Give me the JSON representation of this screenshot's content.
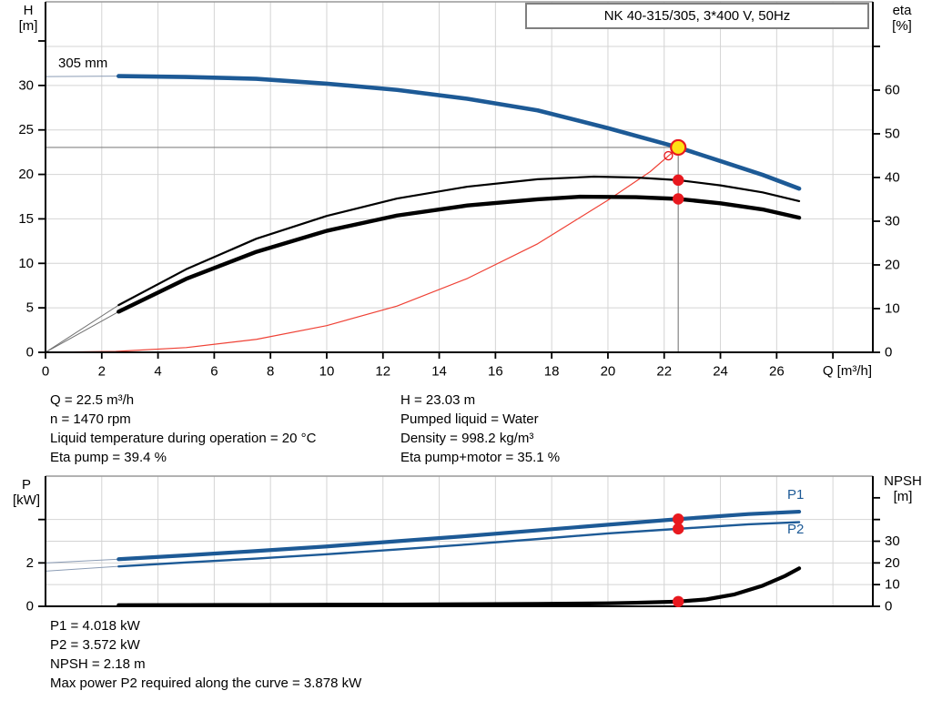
{
  "labels": {
    "impeller": "305 mm",
    "p1": "P1",
    "p2": "P2"
  },
  "info_top": {
    "left": [
      "Q = 22.5 m³/h",
      "n = 1470 rpm",
      "Liquid temperature during operation = 20 °C",
      "Eta pump = 39.4 %"
    ],
    "right": [
      "H = 23.03 m",
      "Pumped liquid = Water",
      "Density = 998.2 kg/m³",
      "Eta pump+motor = 35.1 %"
    ]
  },
  "info_bottom": [
    "P1 = 4.018 kW",
    "P2 = 3.572 kW",
    "NPSH = 2.18 m",
    "Max power P2 required along the curve = 3.878 kW"
  ],
  "colors": {
    "curve_blue": "#1d5a96",
    "curve_black": "#000000",
    "sys_red": "#ef4135",
    "marker_red": "#e8191f",
    "duty_yellow": "#ffe014",
    "ref_gray": "#848484",
    "grid": "#d4d4d4",
    "axis": "#000000",
    "border_gray": "#999999",
    "lead_gray": "#6f6f6f",
    "lead_blue": "#8b9cb5"
  },
  "chart_data": [
    {
      "type": "line",
      "name": "qh-eta-chart",
      "title": "NK 40-315/305, 3*400 V, 50Hz",
      "impeller_label": "305 mm",
      "x_axis": {
        "label": "Q [m³/h]",
        "min": 0,
        "max": 29.42,
        "ticks": [
          [
            0,
            "0"
          ],
          [
            2,
            "2"
          ],
          [
            4,
            "4"
          ],
          [
            6,
            "6"
          ],
          [
            8,
            "8"
          ],
          [
            10,
            "10"
          ],
          [
            12,
            "12"
          ],
          [
            14,
            "14"
          ],
          [
            16,
            "16"
          ],
          [
            18,
            "18"
          ],
          [
            20,
            "20"
          ],
          [
            22,
            "22"
          ],
          [
            24,
            "24"
          ],
          [
            26,
            "26"
          ],
          [
            28,
            ""
          ]
        ],
        "grid": [
          2,
          4,
          6,
          8,
          10,
          12,
          14,
          16,
          18,
          20,
          22,
          24,
          26,
          28
        ]
      },
      "y_left": {
        "label": "H",
        "unit": "[m]",
        "min": 0,
        "max": 39.4,
        "ticks": [
          [
            0,
            "0"
          ],
          [
            5,
            "5"
          ],
          [
            10,
            "10"
          ],
          [
            15,
            "15"
          ],
          [
            20,
            "20"
          ],
          [
            25,
            "25"
          ],
          [
            30,
            "30"
          ],
          [
            35,
            ""
          ]
        ],
        "grid": [
          5,
          10,
          15,
          20,
          25,
          30
        ]
      },
      "y_right": {
        "label": "eta",
        "unit": "[%]",
        "min": 0,
        "max": 80.2,
        "ticks": [
          [
            0,
            "0"
          ],
          [
            10,
            "10"
          ],
          [
            20,
            "20"
          ],
          [
            30,
            "30"
          ],
          [
            40,
            "40"
          ],
          [
            50,
            "50"
          ],
          [
            60,
            "60"
          ],
          [
            70,
            ""
          ]
        ],
        "grid": [
          70
        ]
      },
      "series": [
        {
          "name": "system-curve",
          "axis": "left",
          "color": "sys_red",
          "width": 1.2,
          "points": [
            [
              0,
              0
            ],
            [
              2.5,
              0.1
            ],
            [
              5,
              0.53
            ],
            [
              7.5,
              1.46
            ],
            [
              10,
              3.0
            ],
            [
              12.5,
              5.2
            ],
            [
              15,
              8.3
            ],
            [
              17.5,
              12.2
            ],
            [
              20,
              17.1
            ],
            [
              21.5,
              20.3
            ],
            [
              22.5,
              23.03
            ]
          ]
        },
        {
          "name": "eta-pump-curve",
          "axis": "right",
          "color": "curve_black",
          "width": 2.2,
          "lead": [
            [
              0,
              0
            ],
            [
              2.6,
              10.8
            ]
          ],
          "lead_color": "lead_gray",
          "points": [
            [
              2.6,
              10.8
            ],
            [
              5,
              19
            ],
            [
              7.5,
              26
            ],
            [
              10,
              31.2
            ],
            [
              12.5,
              35.2
            ],
            [
              15,
              37.9
            ],
            [
              17.5,
              39.6
            ],
            [
              19.5,
              40.2
            ],
            [
              21,
              40
            ],
            [
              22.5,
              39.4
            ],
            [
              24,
              38.2
            ],
            [
              25.5,
              36.6
            ],
            [
              26.8,
              34.6
            ]
          ]
        },
        {
          "name": "eta-pump-motor-curve",
          "axis": "right",
          "color": "curve_black",
          "width": 4.4,
          "lead": [
            [
              0,
              0
            ],
            [
              2.6,
              9.3
            ]
          ],
          "lead_color": "lead_gray",
          "points": [
            [
              2.6,
              9.3
            ],
            [
              5,
              16.8
            ],
            [
              7.5,
              23
            ],
            [
              10,
              27.8
            ],
            [
              12.5,
              31.3
            ],
            [
              15,
              33.6
            ],
            [
              17.5,
              35.0
            ],
            [
              19,
              35.6
            ],
            [
              21,
              35.5
            ],
            [
              22.5,
              35.1
            ],
            [
              24,
              34.1
            ],
            [
              25.5,
              32.7
            ],
            [
              26.8,
              30.8
            ]
          ]
        },
        {
          "name": "qh-curve",
          "axis": "left",
          "color": "curve_blue",
          "width": 4.6,
          "lead": [
            [
              0,
              31
            ],
            [
              2.6,
              31.05
            ]
          ],
          "lead_color": "lead_blue",
          "points": [
            [
              2.6,
              31.05
            ],
            [
              5,
              30.95
            ],
            [
              7.5,
              30.75
            ],
            [
              10,
              30.2
            ],
            [
              12.5,
              29.5
            ],
            [
              15,
              28.5
            ],
            [
              17.5,
              27.2
            ],
            [
              20,
              25.2
            ],
            [
              22.5,
              23.03
            ],
            [
              24,
              21.5
            ],
            [
              25.5,
              19.95
            ],
            [
              26.8,
              18.4
            ]
          ]
        }
      ],
      "ref_lines": [
        {
          "q": [
            0,
            22.5
          ],
          "v": [
            23.03,
            23.03
          ],
          "axis": "left"
        },
        {
          "q": [
            22.5,
            22.5
          ],
          "v": [
            0,
            23.03
          ],
          "axis": "left"
        }
      ],
      "markers": [
        {
          "kind": "open",
          "q": 22.15,
          "v": 22.1,
          "axis": "left"
        },
        {
          "kind": "duty",
          "q": 22.5,
          "v": 23.03,
          "axis": "left"
        },
        {
          "kind": "dot",
          "q": 22.5,
          "v": 39.4,
          "axis": "right"
        },
        {
          "kind": "dot",
          "q": 22.5,
          "v": 35.1,
          "axis": "right"
        }
      ]
    },
    {
      "type": "line",
      "name": "power-npsh-chart",
      "x_axis": {
        "label": "",
        "min": 0,
        "max": 29.42,
        "ticks": [],
        "grid": [
          2,
          4,
          6,
          8,
          10,
          12,
          14,
          16,
          18,
          20,
          22,
          24,
          26,
          28
        ]
      },
      "y_left": {
        "label": "P",
        "unit": "[kW]",
        "min": 0,
        "max": 6.0,
        "ticks": [
          [
            0,
            "0"
          ],
          [
            2,
            "2"
          ],
          [
            4,
            ""
          ]
        ],
        "grid": []
      },
      "y_right": {
        "label": "NPSH",
        "unit": "[m]",
        "min": 0,
        "max": 60,
        "ticks": [
          [
            0,
            "0"
          ],
          [
            10,
            "10"
          ],
          [
            20,
            "20"
          ],
          [
            30,
            "30"
          ],
          [
            40,
            ""
          ],
          [
            50,
            ""
          ]
        ],
        "grid": [
          10,
          20,
          30,
          40
        ]
      },
      "series": [
        {
          "name": "P1",
          "axis": "left",
          "color": "curve_blue",
          "width": 4.2,
          "lead": [
            [
              0,
              2.0
            ],
            [
              2.6,
              2.17
            ]
          ],
          "lead_color": "lead_blue",
          "points": [
            [
              2.6,
              2.17
            ],
            [
              5,
              2.35
            ],
            [
              7.5,
              2.55
            ],
            [
              10,
              2.76
            ],
            [
              12.5,
              3.0
            ],
            [
              15,
              3.24
            ],
            [
              17.5,
              3.5
            ],
            [
              20,
              3.76
            ],
            [
              22.5,
              4.018
            ],
            [
              25,
              4.25
            ],
            [
              26.8,
              4.36
            ]
          ]
        },
        {
          "name": "P2",
          "axis": "left",
          "color": "curve_blue",
          "width": 2.4,
          "lead": [
            [
              0,
              1.62
            ],
            [
              2.6,
              1.84
            ]
          ],
          "lead_color": "lead_blue",
          "points": [
            [
              2.6,
              1.84
            ],
            [
              5,
              2.02
            ],
            [
              7.5,
              2.2
            ],
            [
              10,
              2.4
            ],
            [
              12.5,
              2.62
            ],
            [
              15,
              2.85
            ],
            [
              17.5,
              3.1
            ],
            [
              20,
              3.36
            ],
            [
              22.5,
              3.572
            ],
            [
              25,
              3.78
            ],
            [
              26.8,
              3.878
            ]
          ]
        },
        {
          "name": "NPSH-curve",
          "axis": "right",
          "color": "curve_black",
          "width": 4.2,
          "points": [
            [
              2.6,
              0.55
            ],
            [
              5,
              0.6
            ],
            [
              7.5,
              0.65
            ],
            [
              10,
              0.72
            ],
            [
              12.5,
              0.82
            ],
            [
              15,
              0.95
            ],
            [
              17.5,
              1.1
            ],
            [
              19,
              1.25
            ],
            [
              20,
              1.4
            ],
            [
              21,
              1.65
            ],
            [
              22,
              2.0
            ],
            [
              22.5,
              2.18
            ],
            [
              23.5,
              3.2
            ],
            [
              24.5,
              5.5
            ],
            [
              25.5,
              9.5
            ],
            [
              26.3,
              14
            ],
            [
              26.8,
              17.5
            ]
          ]
        }
      ],
      "ref_lines": [],
      "markers": [
        {
          "kind": "dot",
          "q": 22.5,
          "v": 4.018,
          "axis": "left"
        },
        {
          "kind": "dot",
          "q": 22.5,
          "v": 3.572,
          "axis": "left"
        },
        {
          "kind": "dot",
          "q": 22.5,
          "v": 2.18,
          "axis": "right"
        }
      ]
    }
  ]
}
